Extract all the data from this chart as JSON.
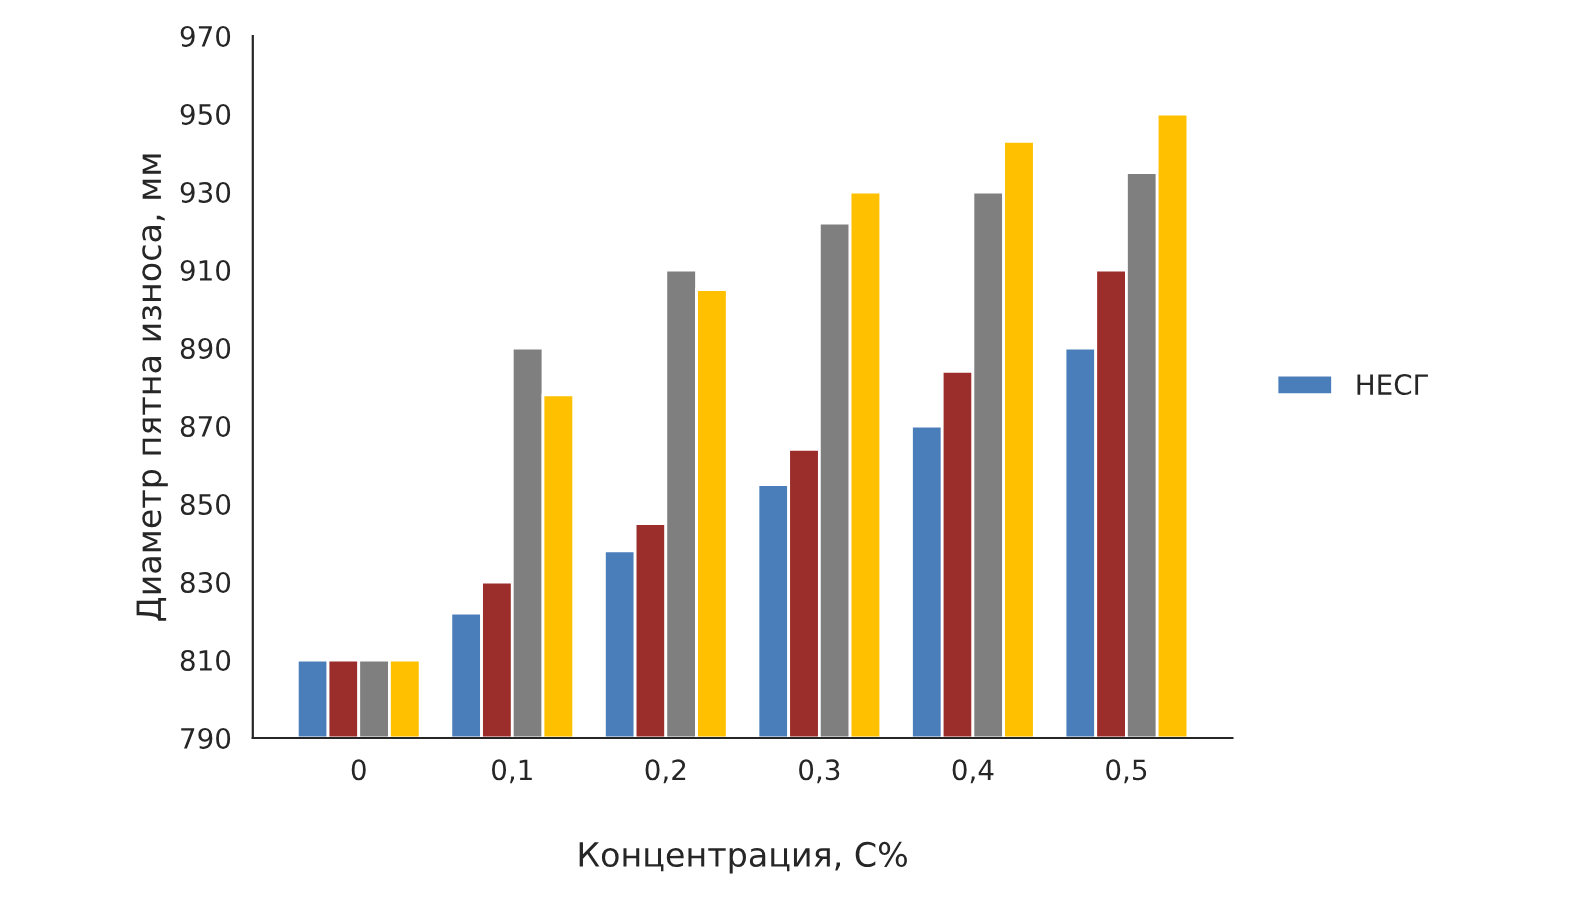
{
  "chart_data": {
    "type": "bar",
    "xlabel": "Концентрация, С%",
    "ylabel": "Диаметр пятна износа, мм",
    "categories": [
      "0",
      "0,1",
      "0,2",
      "0,3",
      "0,4",
      "0,5"
    ],
    "series": [
      {
        "name": "НЕСГ",
        "color": "#4a7ebb",
        "values": [
          810,
          822,
          838,
          855,
          870,
          890
        ]
      },
      {
        "color": "#9b2d2a",
        "values": [
          810,
          830,
          845,
          864,
          884,
          910
        ]
      },
      {
        "color": "#7f7f7f",
        "values": [
          810,
          890,
          910,
          922,
          930,
          935
        ]
      },
      {
        "color": "#ffc000",
        "values": [
          810,
          878,
          905,
          930,
          943,
          950
        ]
      }
    ],
    "ylim": [
      790,
      970
    ],
    "yticks": [
      790,
      810,
      830,
      850,
      870,
      890,
      910,
      930,
      950,
      970
    ],
    "grid": false,
    "legend": "right"
  }
}
